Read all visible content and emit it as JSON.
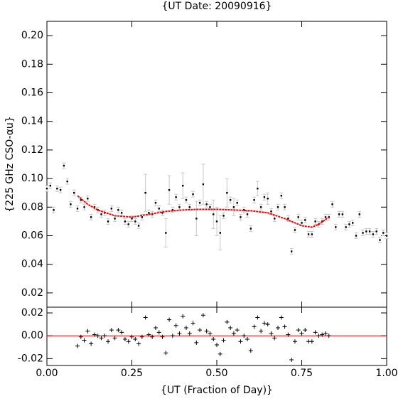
{
  "chart_data": [
    {
      "type": "scatter",
      "title": "{UT Date: 20090916}",
      "y_label": "{225 GHz CSO-αu}",
      "xlim": [
        0,
        1
      ],
      "ylim": [
        0.01,
        0.21
      ],
      "yticks": [
        0.02,
        0.04,
        0.06,
        0.08,
        {
          "value": 0.1,
          "label": "0.10"
        },
        0.12,
        0.14,
        0.16,
        0.18,
        {
          "value": 0.2,
          "label": "0.20"
        }
      ],
      "color": "#000000",
      "error_color": "#c8c8c8",
      "x": [
        0,
        0.01,
        0.02,
        0.03,
        0.04,
        0.05,
        0.06,
        0.07,
        0.08,
        0.09,
        0.1,
        0.11,
        0.12,
        0.13,
        0.14,
        0.15,
        0.16,
        0.17,
        0.18,
        0.19,
        0.2,
        0.21,
        0.22,
        0.23,
        0.24,
        0.25,
        0.26,
        0.27,
        0.28,
        0.29,
        0.3,
        0.31,
        0.32,
        0.33,
        0.34,
        0.35,
        0.36,
        0.37,
        0.38,
        0.39,
        0.4,
        0.41,
        0.42,
        0.43,
        0.44,
        0.45,
        0.46,
        0.47,
        0.48,
        0.49,
        0.5,
        0.51,
        0.52,
        0.53,
        0.54,
        0.55,
        0.56,
        0.57,
        0.58,
        0.59,
        0.6,
        0.61,
        0.62,
        0.63,
        0.64,
        0.65,
        0.66,
        0.67,
        0.68,
        0.69,
        0.7,
        0.71,
        0.72,
        0.73,
        0.74,
        0.75,
        0.76,
        0.77,
        0.78,
        0.79,
        0.8,
        0.81,
        0.82,
        0.83,
        0.84,
        0.85,
        0.86,
        0.87,
        0.88,
        0.89,
        0.9,
        0.91,
        0.92,
        0.93,
        0.94,
        0.95,
        0.96,
        0.97,
        0.98,
        0.99,
        1
      ],
      "values": [
        0.093,
        0.095,
        0.078,
        0.093,
        0.092,
        0.109,
        0.098,
        0.082,
        0.09,
        0.079,
        0.085,
        0.08,
        0.086,
        0.073,
        0.08,
        0.078,
        0.075,
        0.076,
        0.07,
        0.079,
        0.072,
        0.078,
        0.076,
        0.07,
        0.068,
        0.072,
        0.07,
        0.067,
        0.073,
        0.09,
        0.076,
        0.075,
        0.083,
        0.079,
        0.076,
        0.062,
        0.092,
        0.078,
        0.087,
        0.08,
        0.095,
        0.085,
        0.08,
        0.089,
        0.072,
        0.083,
        0.096,
        0.082,
        0.08,
        0.075,
        0.07,
        0.062,
        0.074,
        0.09,
        0.085,
        0.08,
        0.083,
        0.073,
        0.078,
        0.075,
        0.065,
        0.085,
        0.093,
        0.08,
        0.087,
        0.086,
        0.077,
        0.072,
        0.08,
        0.088,
        0.08,
        0.072,
        0.049,
        0.064,
        0.073,
        0.069,
        0.071,
        0.061,
        0.061,
        0.07,
        0.068,
        0.07,
        0.073,
        0.073,
        0.082,
        0.066,
        0.075,
        0.075,
        0.066,
        0.068,
        0.069,
        0.06,
        0.075,
        0.062,
        0.063,
        0.063,
        0.061,
        0.063,
        0.057,
        0.062,
        0.06
      ],
      "errors": [
        0.002,
        0.002,
        0.002,
        0.002,
        0.002,
        0.002,
        0.002,
        0.002,
        0.002,
        0.002,
        0.002,
        0.002,
        0.002,
        0.002,
        0.002,
        0.002,
        0.002,
        0.002,
        0.002,
        0.002,
        0.002,
        0.002,
        0.002,
        0.002,
        0.002,
        0.002,
        0.002,
        0.002,
        0.002,
        0.013,
        0.002,
        0.002,
        0.002,
        0.002,
        0.002,
        0.01,
        0.01,
        0.002,
        0.002,
        0.002,
        0.009,
        0.002,
        0.002,
        0.002,
        0.012,
        0.002,
        0.014,
        0.002,
        0.002,
        0.01,
        0.01,
        0.012,
        0.002,
        0.01,
        0.002,
        0.006,
        0.002,
        0.002,
        0.002,
        0.002,
        0.002,
        0.002,
        0.005,
        0.002,
        0.002,
        0.004,
        0.002,
        0.002,
        0.002,
        0.002,
        0.002,
        0.002,
        0.002,
        0.002,
        0.002,
        0.002,
        0.002,
        0.002,
        0.002,
        0.002,
        0.002,
        0.002,
        0.002,
        0.002,
        0.002,
        0.002,
        0.002,
        0.002,
        0.002,
        0.002,
        0.002,
        0.002,
        0.002,
        0.002,
        0.002,
        0.002,
        0.002,
        0.002,
        0.002,
        0.002,
        0.002
      ],
      "fit": {
        "color": "#ff0000",
        "x": [
          0.09,
          0.12,
          0.15,
          0.2,
          0.25,
          0.3,
          0.35,
          0.4,
          0.45,
          0.5,
          0.55,
          0.6,
          0.65,
          0.7,
          0.75,
          0.78,
          0.8,
          0.83
        ],
        "values": [
          0.088,
          0.082,
          0.078,
          0.074,
          0.073,
          0.075,
          0.077,
          0.078,
          0.0785,
          0.0785,
          0.078,
          0.0775,
          0.076,
          0.072,
          0.067,
          0.066,
          0.068,
          0.073
        ]
      }
    },
    {
      "type": "scatter",
      "x_label": "{UT (Fraction of Day)}",
      "marker": "plus",
      "color": "#000000",
      "xlim": [
        0,
        1
      ],
      "ylim": [
        -0.026,
        0.025
      ],
      "xticks": [
        {
          "value": 0,
          "label": "0.00"
        },
        0.25,
        {
          "value": 0.5,
          "label": "0.50"
        },
        0.75,
        {
          "value": 1,
          "label": "1.00"
        }
      ],
      "yticks": [
        -0.02,
        {
          "value": 0,
          "label": "0.00"
        },
        0.02
      ],
      "reference_line": {
        "value": 0,
        "color": "#ff0000"
      },
      "x": [
        0.09,
        0.1,
        0.11,
        0.12,
        0.13,
        0.14,
        0.15,
        0.16,
        0.17,
        0.18,
        0.19,
        0.2,
        0.21,
        0.22,
        0.23,
        0.24,
        0.25,
        0.26,
        0.27,
        0.28,
        0.29,
        0.3,
        0.31,
        0.32,
        0.33,
        0.34,
        0.35,
        0.36,
        0.37,
        0.38,
        0.39,
        0.4,
        0.41,
        0.42,
        0.43,
        0.44,
        0.45,
        0.46,
        0.47,
        0.48,
        0.49,
        0.5,
        0.51,
        0.52,
        0.53,
        0.54,
        0.55,
        0.56,
        0.57,
        0.58,
        0.59,
        0.6,
        0.61,
        0.62,
        0.63,
        0.64,
        0.65,
        0.66,
        0.67,
        0.68,
        0.69,
        0.7,
        0.71,
        0.72,
        0.73,
        0.74,
        0.75,
        0.76,
        0.77,
        0.78,
        0.79,
        0.8,
        0.81,
        0.82,
        0.83
      ],
      "values": [
        -0.009,
        -0.001,
        -0.004,
        0.004,
        -0.007,
        0.001,
        0,
        -0.002,
        0,
        -0.005,
        0.005,
        -0.002,
        0.005,
        0.003,
        -0.003,
        -0.005,
        -0.001,
        -0.003,
        -0.007,
        -0.001,
        0.016,
        0.001,
        -0.001,
        0.007,
        0.003,
        -0.001,
        -0.015,
        0.014,
        0,
        0.009,
        0.002,
        0.017,
        0.007,
        0.002,
        0.011,
        -0.006,
        0.005,
        0.018,
        0.004,
        0.002,
        -0.003,
        -0.008,
        -0.016,
        -0.004,
        0.012,
        0.007,
        0.002,
        0.005,
        -0.005,
        0,
        -0.003,
        -0.013,
        0.008,
        0.016,
        0.004,
        0.011,
        0.01,
        0.002,
        -0.002,
        0.007,
        0.016,
        0.008,
        0.001,
        -0.021,
        -0.005,
        0.005,
        0.002,
        0.005,
        -0.005,
        -0.005,
        0.003,
        0,
        0.001,
        0.002,
        0
      ]
    }
  ]
}
